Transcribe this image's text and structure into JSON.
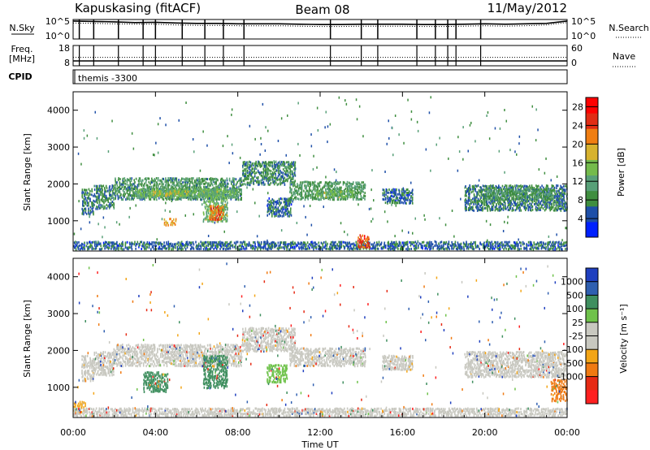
{
  "title": {
    "station": "Kapuskasing (fitACF)",
    "beam": "Beam 08",
    "date": "11/May/2012"
  },
  "colors": {
    "power": [
      "#0020ff",
      "#1e4fa8",
      "#3f8e3f",
      "#58a078",
      "#74bb4c",
      "#d7b22e",
      "#f07e12",
      "#e12c14",
      "#ff0000"
    ],
    "velocity": [
      "#1f3fbf",
      "#2f5fb0",
      "#3f8f5f",
      "#6fc24b",
      "#c8c8c0",
      "#c8c8c0",
      "#f3a516",
      "#f07a12",
      "#e62a14",
      "#ff2020"
    ]
  },
  "chart_data": [
    {
      "type": "line",
      "panel": "noise",
      "labels": {
        "left": "N.Sky",
        "right": "N.Search",
        "right_legend_style": "dotted"
      },
      "y_ticks_left": [
        "10^5",
        "10^0"
      ],
      "y_ticks_right": [
        "10^5",
        "10^0"
      ],
      "series": [
        {
          "style": "solid",
          "values_log10": [
            4.6,
            4.5,
            4.4,
            4.2,
            4.3,
            4.1,
            4.0,
            4.0,
            3.9,
            3.9,
            3.9,
            3.8,
            3.7,
            3.7,
            3.8,
            3.8,
            3.8,
            3.7,
            3.7,
            3.8,
            3.9,
            3.8,
            3.9,
            4.0,
            4.6
          ]
        },
        {
          "style": "dotted",
          "values_log10": [
            4.1,
            4.0,
            3.9,
            3.8,
            3.8,
            3.6,
            3.5,
            3.5,
            3.4,
            3.4,
            3.4,
            3.3,
            3.2,
            3.2,
            3.3,
            3.3,
            3.3,
            3.2,
            3.2,
            3.3,
            3.4,
            3.3,
            3.4,
            3.6,
            4.2
          ]
        }
      ],
      "dropouts_hours": [
        0.3,
        1.0,
        2.2,
        3.4,
        4.0,
        5.3,
        6.4,
        7.3,
        8.3,
        12.5,
        14.0,
        14.8,
        16.7,
        17.6,
        18.2,
        18.6,
        19.8
      ]
    },
    {
      "type": "line",
      "panel": "frequency",
      "labels": {
        "left": "Freq.",
        "left_units": "[MHz]",
        "right": "Nave",
        "right_legend_style": "dotted"
      },
      "y_ticks_left": [
        "18",
        "8"
      ],
      "y_ticks_right": [
        "60",
        "0"
      ],
      "series": [
        {
          "name": "Freq.",
          "style": "solid",
          "values": [
            10.4,
            10.4,
            10.4,
            10.4,
            10.4
          ]
        },
        {
          "name": "Nave",
          "style": "dotted",
          "values": [
            25,
            25,
            25,
            25,
            25
          ]
        }
      ]
    },
    {
      "type": "table",
      "panel": "cpid",
      "label": "CPID",
      "entries": [
        {
          "start_hour": 0,
          "text": "themis -3300"
        }
      ]
    },
    {
      "type": "heatmap",
      "panel": "power",
      "ylabel": "Slant Range [km]",
      "yticks": [
        1000,
        2000,
        3000,
        4000
      ],
      "ylim": [
        180,
        4500
      ],
      "colorbar": {
        "label": "Power [dB]",
        "ticks": [
          4,
          8,
          12,
          16,
          20,
          24,
          28
        ],
        "range": [
          0,
          30
        ]
      },
      "bands": [
        {
          "t0": 0.4,
          "t1": 1.0,
          "r0": 1150,
          "r1": 1850,
          "value": 7
        },
        {
          "t0": 1.0,
          "t1": 2.0,
          "r0": 1300,
          "r1": 1950,
          "value": 8
        },
        {
          "t0": 2.0,
          "t1": 8.2,
          "r0": 1550,
          "r1": 2150,
          "value": 9
        },
        {
          "t0": 3.0,
          "t1": 8.0,
          "r0": 1600,
          "r1": 1850,
          "value": 13
        },
        {
          "t0": 3.8,
          "t1": 5.6,
          "r0": 1650,
          "r1": 1800,
          "value": 16
        },
        {
          "t0": 6.3,
          "t1": 7.5,
          "r0": 950,
          "r1": 1850,
          "value": 14
        },
        {
          "t0": 6.6,
          "t1": 7.3,
          "r0": 1000,
          "r1": 1400,
          "value": 22
        },
        {
          "t0": 4.4,
          "t1": 5.0,
          "r0": 850,
          "r1": 1050,
          "value": 20
        },
        {
          "t0": 8.2,
          "t1": 10.8,
          "r0": 1950,
          "r1": 2600,
          "value": 8
        },
        {
          "t0": 9.4,
          "t1": 10.6,
          "r0": 1100,
          "r1": 1600,
          "value": 6
        },
        {
          "t0": 10.5,
          "t1": 14.2,
          "r0": 1550,
          "r1": 2050,
          "value": 10
        },
        {
          "t0": 11.8,
          "t1": 13.6,
          "r0": 1620,
          "r1": 1800,
          "value": 14
        },
        {
          "t0": 15.0,
          "t1": 16.5,
          "r0": 1450,
          "r1": 1850,
          "value": 6
        },
        {
          "t0": 19.0,
          "t1": 24.0,
          "r0": 1250,
          "r1": 1950,
          "value": 7
        },
        {
          "t0": 20.0,
          "t1": 23.4,
          "r0": 1550,
          "r1": 1850,
          "value": 10
        },
        {
          "t0": 0.0,
          "t1": 24.0,
          "r0": 200,
          "r1": 420,
          "value": 6
        },
        {
          "t0": 13.8,
          "t1": 14.4,
          "r0": 250,
          "r1": 600,
          "value": 24
        }
      ]
    },
    {
      "type": "heatmap",
      "panel": "velocity",
      "xlabel": "Time UT",
      "ylabel": "Slant Range [km]",
      "yticks": [
        1000,
        2000,
        3000,
        4000
      ],
      "ylim": [
        180,
        4500
      ],
      "xticks": [
        "00:00",
        "04:00",
        "08:00",
        "12:00",
        "16:00",
        "20:00",
        "00:00"
      ],
      "xlim_hours": [
        0,
        24
      ],
      "colorbar": {
        "label": "Velocity [m s⁻¹]",
        "ticks": [
          "1000",
          "500",
          "100",
          "25",
          "-25",
          "-100",
          "-500",
          "-1000"
        ]
      },
      "bands": [
        {
          "t0": 0.4,
          "t1": 1.0,
          "r0": 1150,
          "r1": 1850,
          "value": 4
        },
        {
          "t0": 1.0,
          "t1": 2.0,
          "r0": 1300,
          "r1": 1950,
          "value": 4
        },
        {
          "t0": 2.0,
          "t1": 8.2,
          "r0": 1550,
          "r1": 2150,
          "value": 4
        },
        {
          "t0": 6.3,
          "t1": 7.5,
          "r0": 950,
          "r1": 1850,
          "value": 2
        },
        {
          "t0": 3.4,
          "t1": 4.6,
          "r0": 850,
          "r1": 1400,
          "value": 2
        },
        {
          "t0": 8.2,
          "t1": 10.8,
          "r0": 1950,
          "r1": 2600,
          "value": 4
        },
        {
          "t0": 9.4,
          "t1": 10.4,
          "r0": 1100,
          "r1": 1600,
          "value": 3
        },
        {
          "t0": 10.5,
          "t1": 14.2,
          "r0": 1550,
          "r1": 2050,
          "value": 4
        },
        {
          "t0": 15.0,
          "t1": 16.5,
          "r0": 1450,
          "r1": 1850,
          "value": 4
        },
        {
          "t0": 19.0,
          "t1": 24.0,
          "r0": 1250,
          "r1": 1950,
          "value": 4
        },
        {
          "t0": 0.0,
          "t1": 0.6,
          "r0": 250,
          "r1": 600,
          "value": 6
        },
        {
          "t0": 23.2,
          "t1": 24.0,
          "r0": 600,
          "r1": 1200,
          "value": 7
        },
        {
          "t0": 0.0,
          "t1": 24.0,
          "r0": 200,
          "r1": 420,
          "value": 5
        }
      ]
    }
  ]
}
